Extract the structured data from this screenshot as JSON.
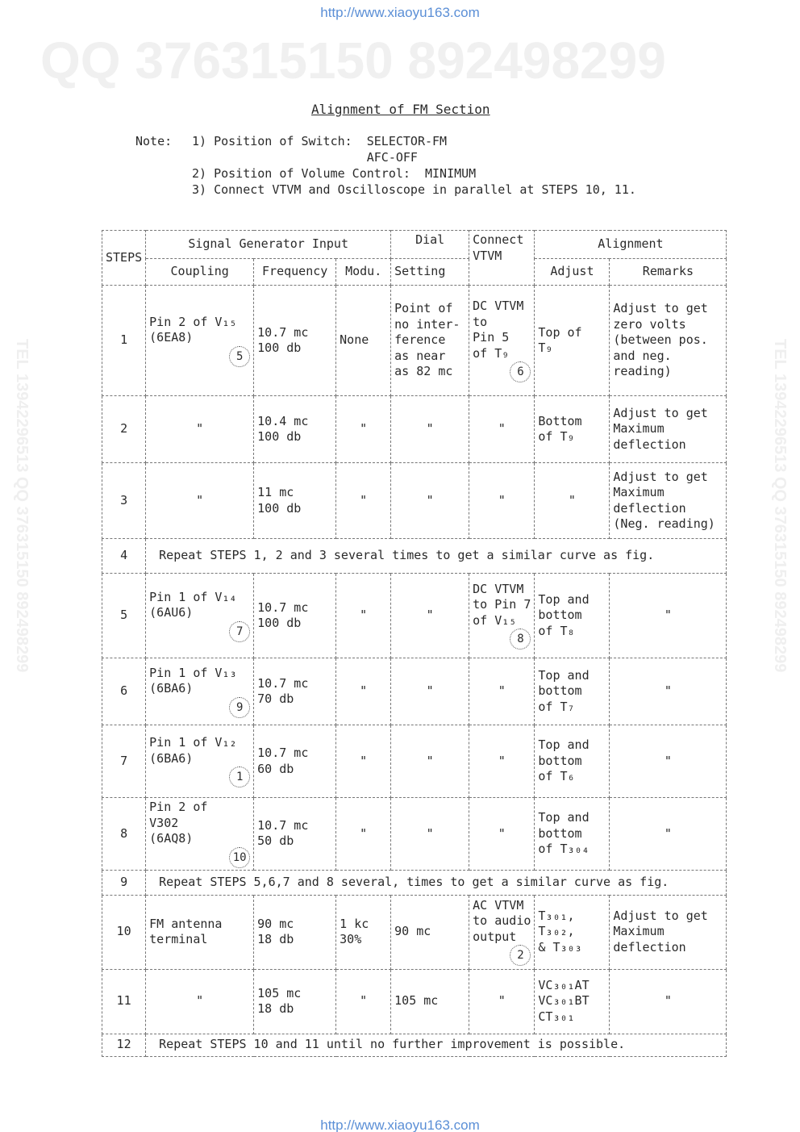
{
  "header_url": "http://www.xiaoyu163.com",
  "footer_url": "http://www.xiaoyu163.com",
  "watermarks": {
    "top": "QQ 376315150  892498299",
    "side": "TEL 13942296513  QQ 376315150  892498299"
  },
  "title": "Alignment  of FM  Section",
  "notes": {
    "label": "Note:",
    "items": [
      "1) Position of Switch:  SELECTOR-FM",
      "                        AFC-OFF",
      "2) Position of Volume Control:  MINIMUM",
      "3) Connect VTVM and Oscilloscope in parallel at STEPS 10, 11."
    ]
  },
  "table": {
    "headers": {
      "steps": "STEPS",
      "signal_generator_input": "Signal Generator Input",
      "dial": "Dial",
      "setting": "Setting",
      "connect_vtvm": [
        "Connect",
        "VTVM"
      ],
      "alignment": "Alignment",
      "coupling": "Coupling",
      "frequency": "Frequency",
      "modu": "Modu.",
      "adjust": "Adjust",
      "remarks": "Remarks"
    },
    "rows": [
      {
        "step": "1",
        "cells": [
          {
            "lines": [
              "Pin 2 of V₁₅",
              "(6EA8)"
            ],
            "mark": "5"
          },
          {
            "lines": [
              "10.7 mc",
              "100 db"
            ]
          },
          {
            "lines": [
              "None"
            ]
          },
          {
            "lines": [
              "Point of",
              "no inter-",
              "ference",
              "as near",
              "as 82 mc"
            ]
          },
          {
            "lines": [
              "DC VTVM",
              "to",
              "Pin 5",
              "of T₉"
            ],
            "mark": "6"
          },
          {
            "lines": [
              "Top of",
              "T₉"
            ]
          },
          {
            "lines": [
              "Adjust to get",
              "zero volts",
              "(between pos.",
              "  and neg.",
              "  reading)"
            ]
          }
        ]
      },
      {
        "step": "2",
        "cells": [
          {
            "lines": [
              "\""
            ],
            "c": 1
          },
          {
            "lines": [
              "10.4 mc",
              "100 db"
            ]
          },
          {
            "lines": [
              "\""
            ],
            "c": 1
          },
          {
            "lines": [
              "\""
            ],
            "c": 1
          },
          {
            "lines": [
              "\""
            ],
            "c": 1
          },
          {
            "lines": [
              "Bottom",
              "of T₉"
            ]
          },
          {
            "lines": [
              "Adjust to get",
              "Maximum",
              "deflection"
            ]
          }
        ]
      },
      {
        "step": "3",
        "cells": [
          {
            "lines": [
              "\""
            ],
            "c": 1
          },
          {
            "lines": [
              "11 mc",
              "100 db"
            ]
          },
          {
            "lines": [
              "\""
            ],
            "c": 1
          },
          {
            "lines": [
              "\""
            ],
            "c": 1
          },
          {
            "lines": [
              "\""
            ],
            "c": 1
          },
          {
            "lines": [
              "\""
            ],
            "c": 1
          },
          {
            "lines": [
              "Adjust to get",
              "Maximum",
              "deflection",
              "(Neg. reading)"
            ]
          }
        ]
      },
      {
        "step": "4",
        "span": "Repeat STEPS 1, 2 and 3 several times to get a similar curve as fig."
      },
      {
        "step": "5",
        "cells": [
          {
            "lines": [
              "Pin 1 of V₁₄",
              "(6AU6)"
            ],
            "mark": "7"
          },
          {
            "lines": [
              "10.7 mc",
              "100 db"
            ]
          },
          {
            "lines": [
              "\""
            ],
            "c": 1
          },
          {
            "lines": [
              "\""
            ],
            "c": 1
          },
          {
            "lines": [
              "DC VTVM",
              "to Pin 7",
              "of V₁₅"
            ],
            "mark": "8"
          },
          {
            "lines": [
              "Top and",
              "bottom",
              "of T₈"
            ]
          },
          {
            "lines": [
              "\""
            ],
            "c": 1
          }
        ]
      },
      {
        "step": "6",
        "cells": [
          {
            "lines": [
              "Pin 1 of V₁₃",
              "(6BA6)"
            ],
            "mark": "9"
          },
          {
            "lines": [
              "10.7 mc",
              "70 db"
            ]
          },
          {
            "lines": [
              "\""
            ],
            "c": 1
          },
          {
            "lines": [
              "\""
            ],
            "c": 1
          },
          {
            "lines": [
              "\""
            ],
            "c": 1
          },
          {
            "lines": [
              "Top and",
              "bottom",
              "of T₇"
            ]
          },
          {
            "lines": [
              "\""
            ],
            "c": 1
          }
        ]
      },
      {
        "step": "7",
        "cells": [
          {
            "lines": [
              "Pin 1 of V₁₂",
              "(6BA6)"
            ],
            "mark": "1"
          },
          {
            "lines": [
              "10.7 mc",
              "60 db"
            ]
          },
          {
            "lines": [
              "\""
            ],
            "c": 1
          },
          {
            "lines": [
              "\""
            ],
            "c": 1
          },
          {
            "lines": [
              "\""
            ],
            "c": 1
          },
          {
            "lines": [
              "Top and",
              "bottom",
              "of T₆"
            ]
          },
          {
            "lines": [
              "\""
            ],
            "c": 1
          }
        ]
      },
      {
        "step": "8",
        "cells": [
          {
            "lines": [
              "Pin 2 of",
              "V302",
              "(6AQ8)"
            ],
            "mark": "10"
          },
          {
            "lines": [
              "10.7 mc",
              "50 db"
            ]
          },
          {
            "lines": [
              "\""
            ],
            "c": 1
          },
          {
            "lines": [
              "\""
            ],
            "c": 1
          },
          {
            "lines": [
              "\""
            ],
            "c": 1
          },
          {
            "lines": [
              "Top and",
              "bottom",
              "of T₃₀₄"
            ]
          },
          {
            "lines": [
              "\""
            ],
            "c": 1
          }
        ]
      },
      {
        "step": "9",
        "span": "Repeat STEPS 5,6,7 and 8 several, times to get a similar curve as fig."
      },
      {
        "step": "10",
        "cells": [
          {
            "lines": [
              "FM antenna",
              "terminal"
            ]
          },
          {
            "lines": [
              "90 mc",
              "18 db"
            ]
          },
          {
            "lines": [
              "1 kc",
              "30%"
            ]
          },
          {
            "lines": [
              "90 mc"
            ]
          },
          {
            "lines": [
              "AC VTVM",
              "to audio",
              "output"
            ],
            "mark": "2"
          },
          {
            "lines": [
              "T₃₀₁,",
              "T₃₀₂,",
              "& T₃₀₃"
            ]
          },
          {
            "lines": [
              "Adjust to get",
              "Maximum",
              "deflection"
            ]
          }
        ]
      },
      {
        "step": "11",
        "cells": [
          {
            "lines": [
              "\""
            ],
            "c": 1
          },
          {
            "lines": [
              "105 mc",
              "18 db"
            ]
          },
          {
            "lines": [
              "\""
            ],
            "c": 1
          },
          {
            "lines": [
              "105 mc"
            ]
          },
          {
            "lines": [
              "\""
            ],
            "c": 1
          },
          {
            "lines": [
              "VC₃₀₁AT",
              "VC₃₀₁BT",
              "CT₃₀₁"
            ]
          },
          {
            "lines": [
              "\""
            ],
            "c": 1
          }
        ]
      },
      {
        "step": "12",
        "span": "Repeat STEPS 10 and 11 until no further improvement is possible."
      }
    ]
  }
}
